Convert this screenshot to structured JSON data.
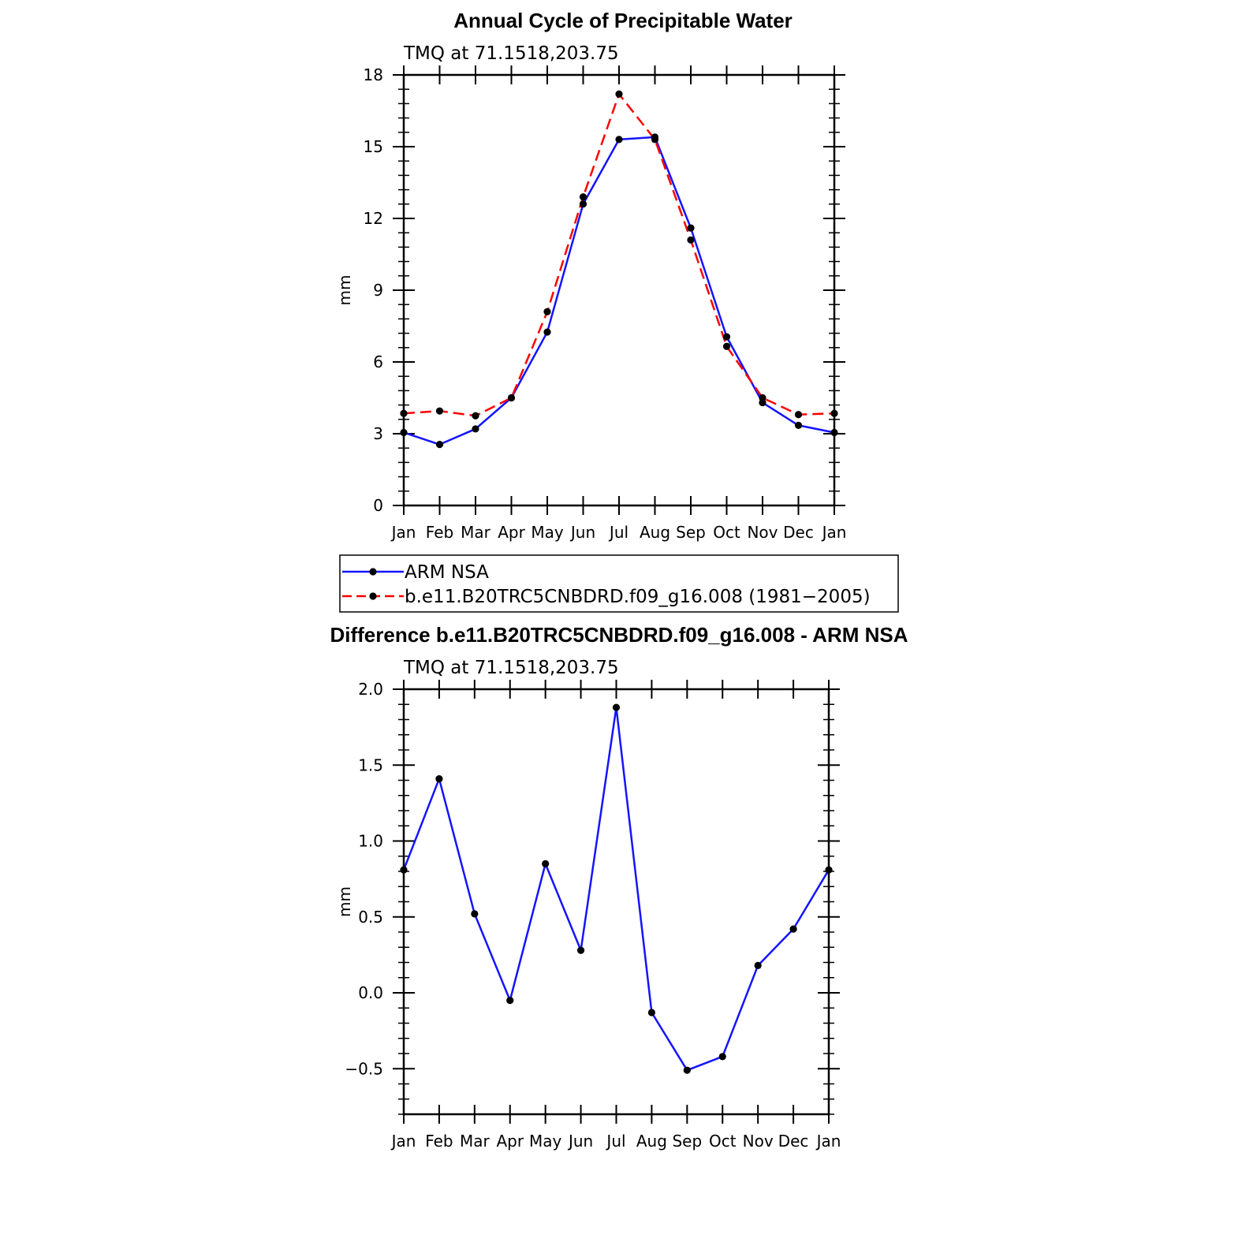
{
  "top_title": "Annual Cycle of Precipitable Water",
  "bottom_title": "Difference b.e11.B20TRC5CNBDRD.f09_g16.008 - ARM NSA",
  "colors": {
    "series_obs": "#1414ff",
    "series_model": "#ff0000",
    "marker": "#000000",
    "axis": "#000000"
  },
  "chart_data": [
    {
      "type": "line",
      "subtitle": "TMQ  at  71.1518,203.75",
      "ylabel": "mm",
      "categories": [
        "Jan",
        "Feb",
        "Mar",
        "Apr",
        "May",
        "Jun",
        "Jul",
        "Aug",
        "Sep",
        "Oct",
        "Nov",
        "Dec",
        "Jan"
      ],
      "ylim": [
        0,
        18
      ],
      "yticks": [
        0,
        3,
        6,
        9,
        12,
        15,
        18
      ],
      "ytick_labels": [
        "0",
        "3",
        "6",
        "9",
        "12",
        "15",
        "18"
      ],
      "series": [
        {
          "name": "ARM  NSA",
          "style": "solid",
          "values": [
            3.05,
            2.55,
            3.2,
            4.5,
            7.25,
            12.6,
            15.3,
            15.4,
            11.6,
            7.05,
            4.3,
            3.35,
            3.05
          ]
        },
        {
          "name": "b.e11.B20TRC5CNBDRD.f09_g16.008  (1981−2005)",
          "style": "dashed",
          "values": [
            3.85,
            3.95,
            3.75,
            4.5,
            8.1,
            12.9,
            17.2,
            15.3,
            11.1,
            6.65,
            4.5,
            3.8,
            3.85
          ]
        }
      ],
      "legend": "below"
    },
    {
      "type": "line",
      "subtitle": "TMQ  at  71.1518,203.75",
      "ylabel": "mm",
      "categories": [
        "Jan",
        "Feb",
        "Mar",
        "Apr",
        "May",
        "Jun",
        "Jul",
        "Aug",
        "Sep",
        "Oct",
        "Nov",
        "Dec",
        "Jan"
      ],
      "ylim": [
        -0.8,
        2.0
      ],
      "yticks": [
        -0.5,
        0.0,
        0.5,
        1.0,
        1.5,
        2.0
      ],
      "ytick_labels": [
        "−0.5",
        "0.0",
        "0.5",
        "1.0",
        "1.5",
        "2.0"
      ],
      "series": [
        {
          "style": "solid",
          "values": [
            0.81,
            1.41,
            0.52,
            -0.05,
            0.85,
            0.28,
            1.88,
            -0.13,
            -0.51,
            -0.42,
            0.18,
            0.42,
            0.81
          ]
        }
      ]
    }
  ]
}
